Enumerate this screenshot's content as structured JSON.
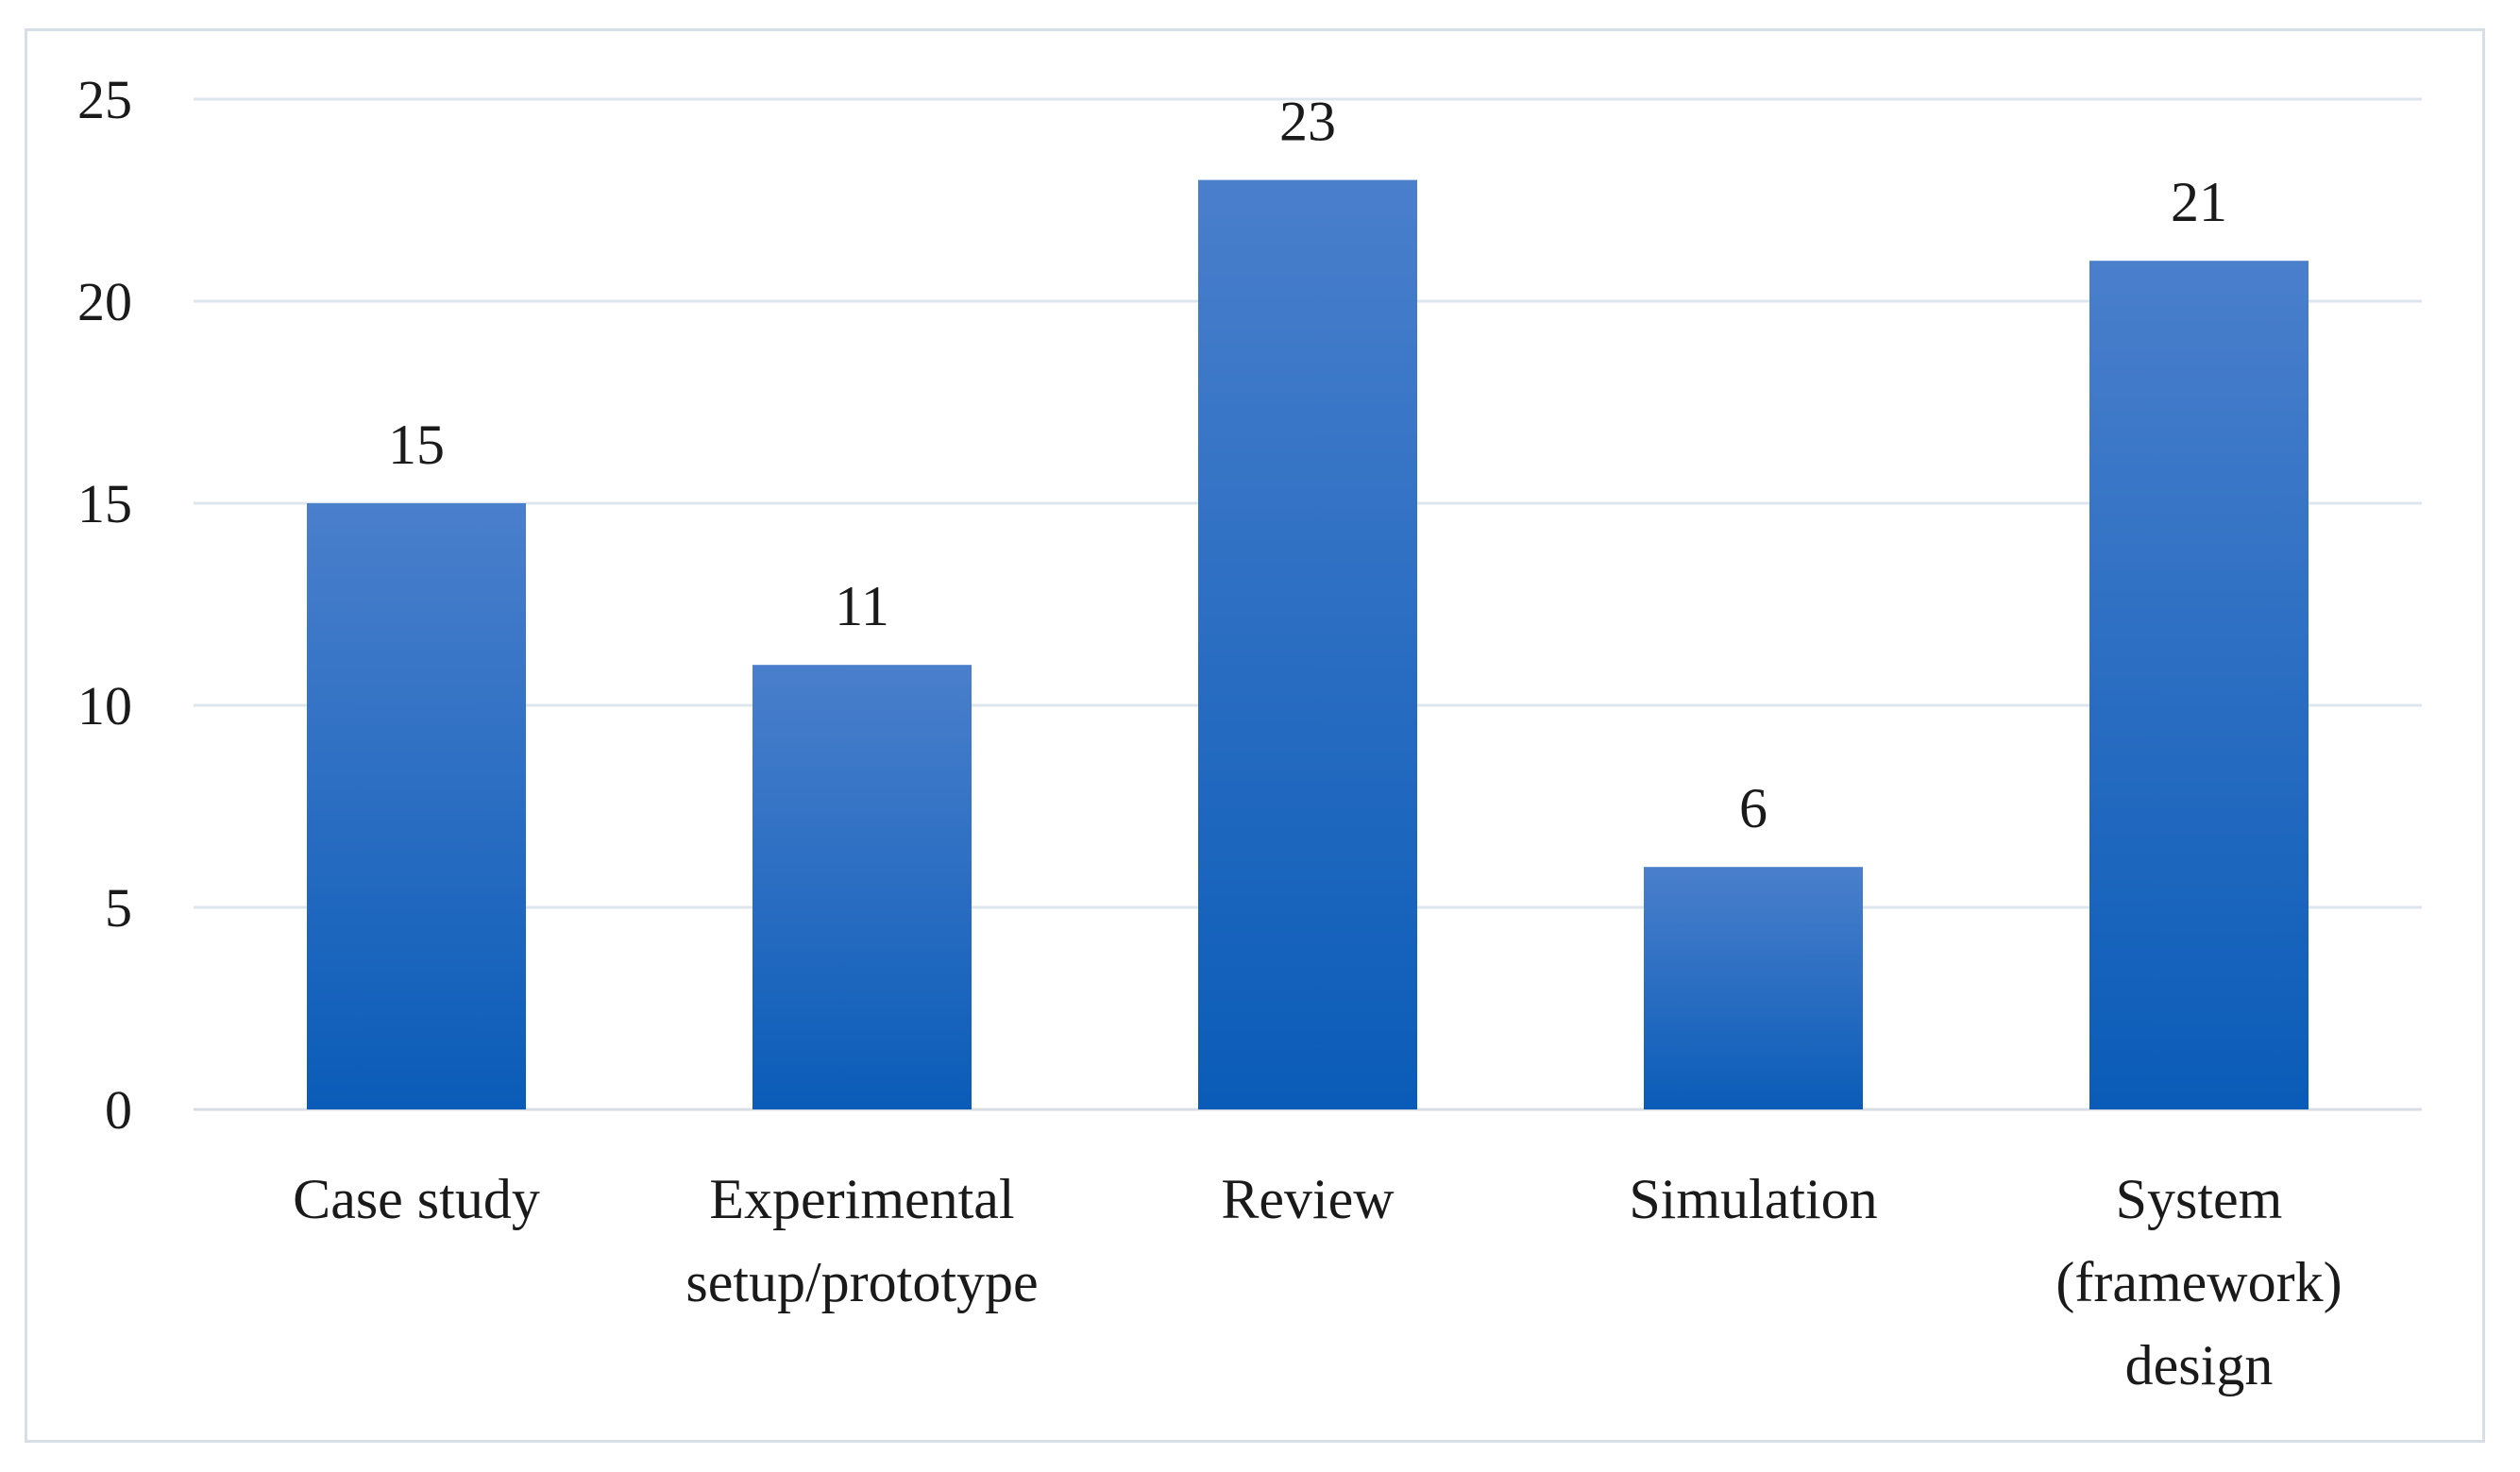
{
  "chart_data": {
    "type": "bar",
    "title": "",
    "xlabel": "",
    "ylabel": "",
    "categories": [
      [
        "Case study"
      ],
      [
        "Experimental",
        "setup/prototype"
      ],
      [
        "Review"
      ],
      [
        "Simulation"
      ],
      [
        "System",
        "(framework)",
        "design"
      ]
    ],
    "values": [
      15,
      11,
      23,
      6,
      21
    ],
    "ylim": [
      0,
      25
    ],
    "yticks": [
      0,
      5,
      10,
      15,
      20,
      25
    ],
    "grid": true,
    "legend": "none",
    "colors": {
      "bar_top": "#4a7fcc",
      "bar_bottom": "#0a5cb8",
      "grid": "#dfe5ec",
      "axis": "#d9dee5"
    }
  }
}
